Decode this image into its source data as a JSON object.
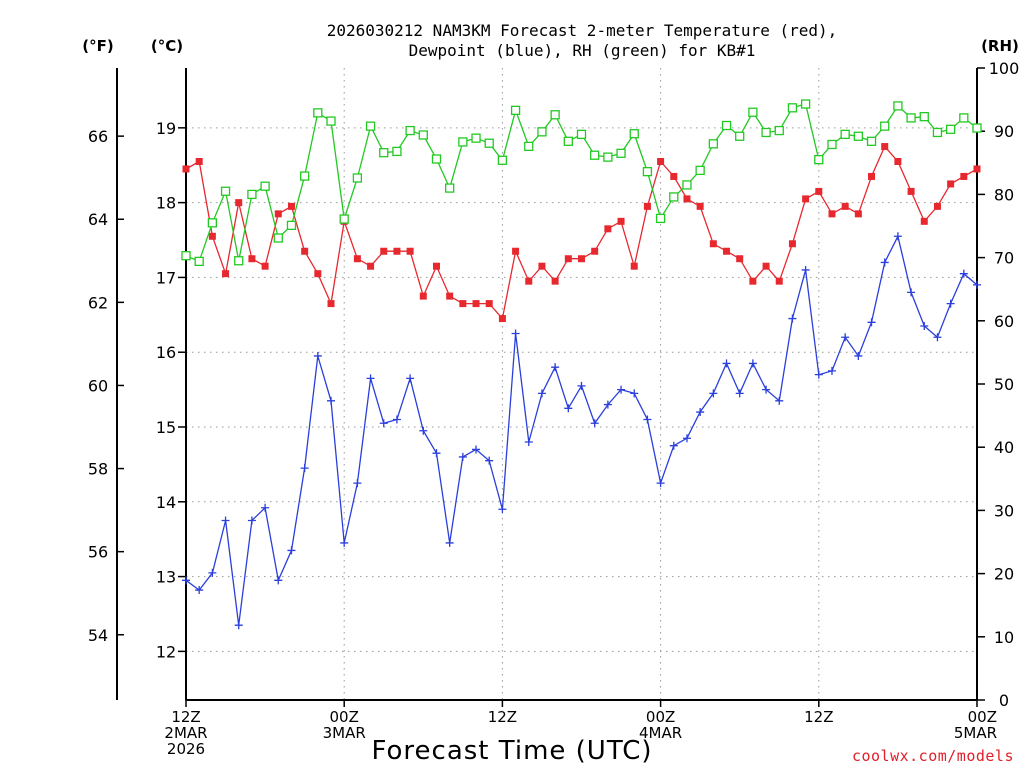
{
  "chart_data": {
    "type": "line",
    "title": [
      "2026030212 NAM3KM Forecast 2-meter Temperature (red),",
      "Dewpoint (blue), RH (green) for KB#1"
    ],
    "xlabel": "Forecast Time (UTC)",
    "credit": "coolwx.com/models",
    "left_axis_unit": "(°C)",
    "far_left_axis_unit": "(°F)",
    "right_axis_unit": "(RH)",
    "x_ticks": [
      {
        "hour": 0,
        "lines": [
          "12Z",
          "2MAR",
          "2026"
        ]
      },
      {
        "hour": 12,
        "lines": [
          "00Z",
          "3MAR"
        ]
      },
      {
        "hour": 24,
        "lines": [
          "12Z"
        ]
      },
      {
        "hour": 36,
        "lines": [
          "00Z",
          "4MAR"
        ]
      },
      {
        "hour": 48,
        "lines": [
          "12Z"
        ]
      },
      {
        "hour": 60,
        "lines": [
          "00Z",
          "5MAR"
        ]
      }
    ],
    "xlim_hours": [
      0,
      60
    ],
    "ylim_celsius": [
      11.35,
      19.8
    ],
    "ylim_rh": [
      0,
      100
    ],
    "celsius_ticks": [
      12,
      13,
      14,
      15,
      16,
      17,
      18,
      19
    ],
    "fahrenheit_ticks": [
      54,
      56,
      58,
      60,
      62,
      64,
      66
    ],
    "rh_ticks": [
      0,
      10,
      20,
      30,
      40,
      50,
      60,
      70,
      80,
      90,
      100
    ],
    "grid": true,
    "series": [
      {
        "name": "Temperature",
        "color": "#e8282f",
        "marker": "filled-square",
        "axis": "celsius",
        "values": [
          18.45,
          18.55,
          17.55,
          17.05,
          18.0,
          17.25,
          17.15,
          17.85,
          17.95,
          17.35,
          17.05,
          16.65,
          17.75,
          17.25,
          17.15,
          17.35,
          17.35,
          17.35,
          16.75,
          17.15,
          16.75,
          16.65,
          16.65,
          16.65,
          16.45,
          17.35,
          16.95,
          17.15,
          16.95,
          17.25,
          17.25,
          17.35,
          17.65,
          17.75,
          17.15,
          17.95,
          18.55,
          18.35,
          18.05,
          17.95,
          17.45,
          17.35,
          17.25,
          16.95,
          17.15,
          16.95,
          17.45,
          18.05,
          18.15,
          17.85,
          17.95,
          17.85,
          18.35,
          18.75,
          18.55,
          18.15,
          17.75,
          17.95,
          18.25,
          18.35,
          18.45
        ]
      },
      {
        "name": "Dewpoint",
        "color": "#2a3fdc",
        "marker": "plus",
        "axis": "celsius",
        "values": [
          12.95,
          12.82,
          13.05,
          13.75,
          12.35,
          13.75,
          13.92,
          12.95,
          13.35,
          14.45,
          15.95,
          15.35,
          13.45,
          14.25,
          15.65,
          15.05,
          15.1,
          15.65,
          14.95,
          14.65,
          13.45,
          14.6,
          14.7,
          14.55,
          13.9,
          16.25,
          14.8,
          15.45,
          15.8,
          15.25,
          15.55,
          15.05,
          15.3,
          15.5,
          15.45,
          15.1,
          14.25,
          14.75,
          14.85,
          15.2,
          15.45,
          15.85,
          15.45,
          15.85,
          15.5,
          15.35,
          16.45,
          17.1,
          15.7,
          15.75,
          16.2,
          15.95,
          16.4,
          17.2,
          17.55,
          16.8,
          16.35,
          16.2,
          16.65,
          17.05,
          16.9
        ]
      },
      {
        "name": "RH",
        "color": "#22c922",
        "marker": "open-square",
        "axis": "rh",
        "values": [
          70.3,
          69.4,
          75.5,
          80.5,
          69.5,
          80.0,
          81.3,
          73.1,
          75.1,
          82.9,
          92.9,
          91.6,
          76.1,
          82.6,
          90.8,
          86.6,
          86.8,
          90.1,
          89.4,
          85.6,
          81.0,
          88.3,
          88.9,
          88.1,
          85.4,
          93.3,
          87.6,
          89.9,
          92.6,
          88.4,
          89.5,
          86.2,
          85.9,
          86.5,
          89.6,
          83.6,
          76.2,
          79.6,
          81.5,
          83.8,
          88.0,
          90.9,
          89.2,
          93.0,
          89.8,
          90.1,
          93.7,
          94.3,
          85.5,
          87.9,
          89.5,
          89.2,
          88.4,
          90.8,
          94.0,
          92.1,
          92.3,
          89.8,
          90.3,
          92.1,
          90.5
        ]
      }
    ]
  }
}
